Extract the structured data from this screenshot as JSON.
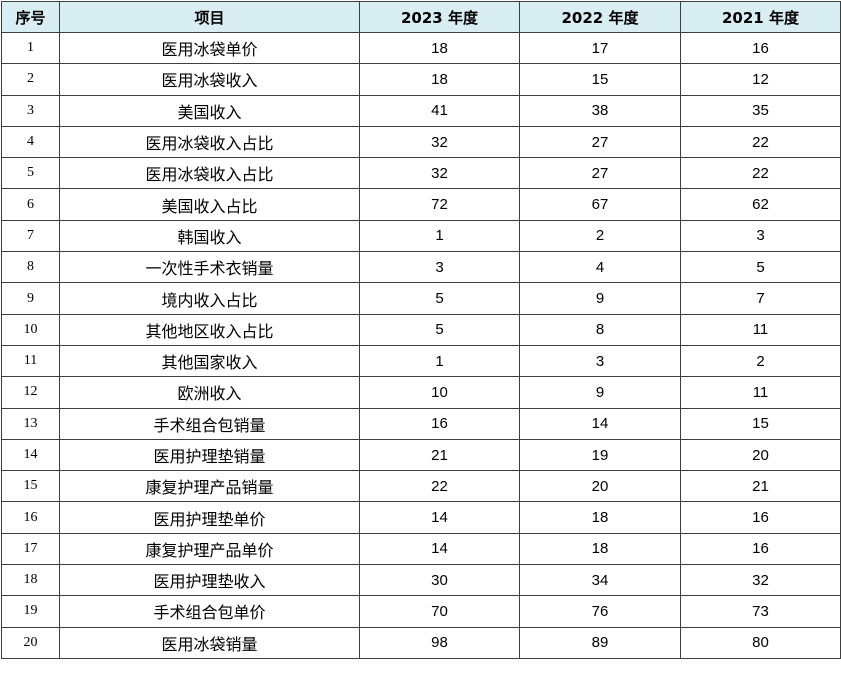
{
  "chart_data": {
    "type": "table",
    "columns": [
      "序号",
      "项目",
      "2023 年度",
      "2022 年度",
      "2021 年度"
    ],
    "rows": [
      [
        "1",
        "医用冰袋单价",
        "18",
        "17",
        "16"
      ],
      [
        "2",
        "医用冰袋收入",
        "18",
        "15",
        "12"
      ],
      [
        "3",
        "美国收入",
        "41",
        "38",
        "35"
      ],
      [
        "4",
        "医用冰袋收入占比",
        "32",
        "27",
        "22"
      ],
      [
        "5",
        "医用冰袋收入占比",
        "32",
        "27",
        "22"
      ],
      [
        "6",
        "美国收入占比",
        "72",
        "67",
        "62"
      ],
      [
        "7",
        "韩国收入",
        "1",
        "2",
        "3"
      ],
      [
        "8",
        "一次性手术衣销量",
        "3",
        "4",
        "5"
      ],
      [
        "9",
        "境内收入占比",
        "5",
        "9",
        "7"
      ],
      [
        "10",
        "其他地区收入占比",
        "5",
        "8",
        "11"
      ],
      [
        "11",
        "其他国家收入",
        "1",
        "3",
        "2"
      ],
      [
        "12",
        "欧洲收入",
        "10",
        "9",
        "11"
      ],
      [
        "13",
        "手术组合包销量",
        "16",
        "14",
        "15"
      ],
      [
        "14",
        "医用护理垫销量",
        "21",
        "19",
        "20"
      ],
      [
        "15",
        "康复护理产品销量",
        "22",
        "20",
        "21"
      ],
      [
        "16",
        "医用护理垫单价",
        "14",
        "18",
        "16"
      ],
      [
        "17",
        "康复护理产品单价",
        "14",
        "18",
        "16"
      ],
      [
        "18",
        "医用护理垫收入",
        "30",
        "34",
        "32"
      ],
      [
        "19",
        "手术组合包单价",
        "70",
        "76",
        "73"
      ],
      [
        "20",
        "医用冰袋销量",
        "98",
        "89",
        "80"
      ]
    ]
  },
  "colors": {
    "header_background": "#d9eef3",
    "border": "#3f3f3f"
  }
}
